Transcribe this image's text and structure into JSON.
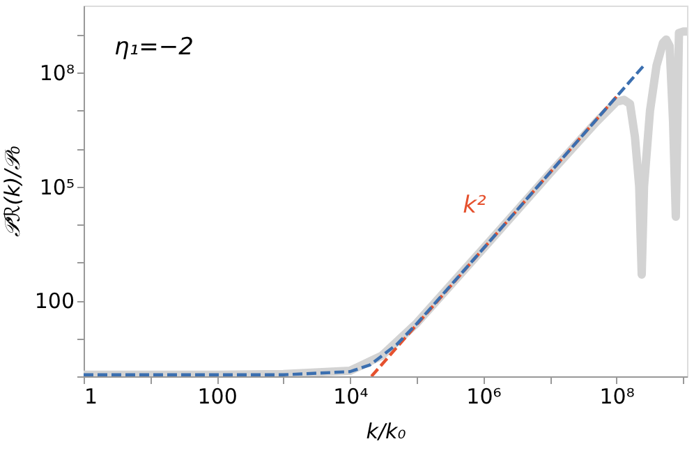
{
  "chart_data": {
    "type": "line",
    "xlabel": "k/k₀",
    "ylabel": "𝒫ℛ(k)/𝒫₀",
    "annotations": [
      "η₁=−2"
    ],
    "log": "xy",
    "grid": false,
    "marker": "none",
    "xlim": [
      1,
      1150000000
    ],
    "ylim": [
      1,
      5800000000
    ],
    "xticks": [
      1,
      {
        "value": 10,
        "label": null
      },
      100,
      {
        "value": 1000,
        "label": null
      },
      {
        "value": 10000,
        "label": "10⁴"
      },
      {
        "value": 100000,
        "label": null
      },
      {
        "value": 1000000,
        "label": "10⁶"
      },
      {
        "value": 10000000,
        "label": null
      },
      {
        "value": 100000000,
        "label": "10⁸"
      },
      {
        "value": 1000000000,
        "label": null
      }
    ],
    "yticks": [
      {
        "value": 1,
        "label": null
      },
      {
        "value": 10,
        "label": null
      },
      100,
      {
        "value": 1000,
        "label": null
      },
      {
        "value": 10000,
        "label": null
      },
      {
        "value": 100000,
        "label": "10⁵"
      },
      {
        "value": 1000000,
        "label": null
      },
      {
        "value": 10000000,
        "label": null
      },
      {
        "value": 100000000,
        "label": "10⁸"
      },
      {
        "value": 1000000000,
        "label": null
      }
    ],
    "series": [
      {
        "color": "#d3d3d3",
        "line_style": "solid",
        "x": [
          1,
          10,
          100,
          1000,
          10000,
          30000,
          100000,
          1000000,
          10000000,
          50000000,
          100000000,
          130000000,
          160000000,
          190000000,
          220000000,
          240000000,
          260000000,
          320000000,
          400000000,
          500000000,
          560000000,
          630000000,
          710000000,
          780000000,
          830000000,
          870000000,
          1000000000,
          1150000000
        ],
        "values": [
          1.1,
          1.1,
          1.1,
          1.15,
          1.4,
          3.5,
          25,
          2300,
          220000,
          5000000,
          17000000,
          19000000,
          15000000,
          2000000,
          100000,
          480,
          100000,
          10000000,
          150000000,
          600000000,
          740000000,
          500000000,
          5000000,
          16000,
          10000000,
          1100000000,
          1200000000,
          1200000000
        ]
      },
      {
        "color": "#e5512e",
        "line_style": "dashed",
        "name": "k²",
        "x": [
          21000,
          100000000
        ],
        "values": [
          1,
          23000000
        ]
      },
      {
        "color": "#3b6fb0",
        "line_style": "dashed",
        "x": [
          1,
          10,
          100,
          1000,
          10000,
          20000,
          50000,
          100000,
          1000000,
          10000000,
          100000000,
          260000000
        ],
        "values": [
          1.1,
          1.1,
          1.1,
          1.1,
          1.33,
          2.0,
          6.8,
          24,
          2300,
          230000,
          23000000,
          155000000
        ]
      }
    ]
  }
}
